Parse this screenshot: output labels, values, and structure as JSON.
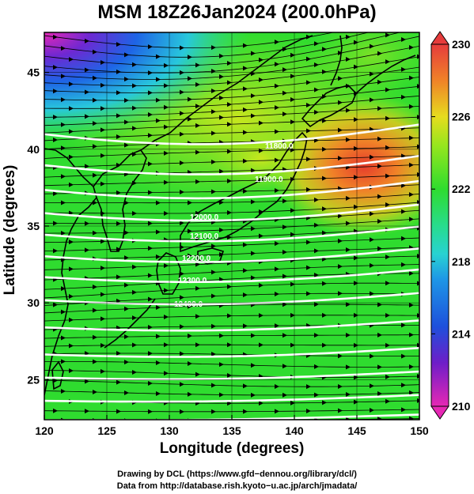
{
  "title": "MSM 18Z26Jan2024 (200.0hPa)",
  "xlabel": "Longitude (degrees)",
  "ylabel": "Latitude  (degrees)",
  "credit_line1": "Drawing by DCL (https://www.gfd−dennou.org/library/dcl/)",
  "credit_line2": "Data from http://database.rish.kyoto−u.ac.jp/arch/jmadata/",
  "map": {
    "lon_range": [
      120,
      150
    ],
    "lat_range": [
      22.4,
      47.6
    ],
    "x_ticks": [
      "120",
      "125",
      "130",
      "135",
      "140",
      "145",
      "150"
    ],
    "y_ticks": [
      "25",
      "30",
      "35",
      "40",
      "45"
    ],
    "color_field": "temperature (shaded)",
    "colorbar": {
      "min": 210,
      "max": 230,
      "ticks": [
        "210",
        "214",
        "218",
        "222",
        "226",
        "230"
      ]
    },
    "contour_labels": [
      "11800.0",
      "11900.0",
      "12000.0",
      "12100.0",
      "12200.0",
      "12300.0",
      "12400.0"
    ],
    "colors": {
      "green": "#2fdc2f",
      "yellow_green": "#b4e61e",
      "orange": "#f08228",
      "red": "#e63c3c",
      "cyan": "#28d2d2",
      "blue": "#1e64e6",
      "magenta": "#e628b4"
    }
  }
}
